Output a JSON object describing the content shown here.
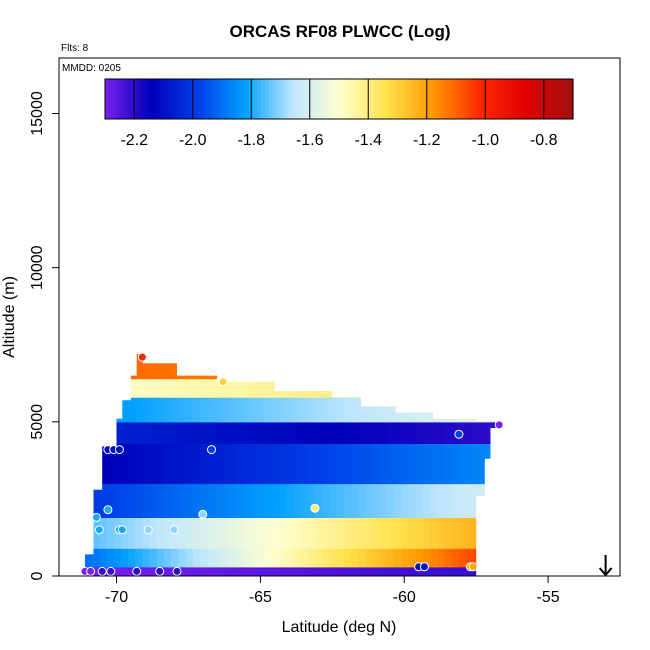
{
  "chart_data": {
    "type": "heatmap",
    "title": "ORCAS RF08 PLWCC (Log)",
    "annotations": {
      "flights": "Flts: 8",
      "date": "MMDD: 0205"
    },
    "xlabel": "Latitude (deg N)",
    "ylabel": "Altitude (m)",
    "xlim": [
      -72,
      -52.5
    ],
    "ylim": [
      0,
      16800
    ],
    "x_ticks": [
      -70,
      -65,
      -60,
      -55
    ],
    "x_tick_labels": [
      "-70",
      "-65",
      "-60",
      "-55"
    ],
    "y_ticks": [
      0,
      5000,
      10000,
      15000
    ],
    "y_tick_labels": [
      "0",
      "5000",
      "10000",
      "15000"
    ],
    "grid": false,
    "colorbar": {
      "range": [
        -2.3,
        -0.7
      ],
      "ticks": [
        -2.2,
        -2.0,
        -1.8,
        -1.6,
        -1.4,
        -1.2,
        -1.0,
        -0.8
      ],
      "tick_labels": [
        "-2.2",
        "-2.0",
        "-1.8",
        "-1.6",
        "-1.4",
        "-1.2",
        "-1.0",
        "-0.8"
      ],
      "colors": [
        "#7a1ff0",
        "#0000b8",
        "#0040e8",
        "#00a0ff",
        "#bfe6ff",
        "#ffffd0",
        "#ffe24d",
        "#ff9a00",
        "#ff2a00",
        "#e00000",
        "#a01010"
      ],
      "placement": "top-inside"
    },
    "domain_outline": [
      [
        -71.1,
        0
      ],
      [
        -71.1,
        700
      ],
      [
        -70.8,
        700
      ],
      [
        -70.8,
        2800
      ],
      [
        -70.5,
        2800
      ],
      [
        -70.5,
        4200
      ],
      [
        -70.0,
        4200
      ],
      [
        -70.0,
        5100
      ],
      [
        -69.8,
        5100
      ],
      [
        -69.8,
        5700
      ],
      [
        -69.5,
        5700
      ],
      [
        -69.5,
        6500
      ],
      [
        -69.3,
        6500
      ],
      [
        -69.3,
        7200
      ],
      [
        -69.1,
        7200
      ],
      [
        -69.1,
        6900
      ],
      [
        -67.9,
        6900
      ],
      [
        -67.9,
        6500
      ],
      [
        -66.5,
        6500
      ],
      [
        -66.5,
        6300
      ],
      [
        -64.5,
        6300
      ],
      [
        -64.5,
        6000
      ],
      [
        -62.5,
        6000
      ],
      [
        -62.5,
        5800
      ],
      [
        -61.5,
        5800
      ],
      [
        -61.5,
        5500
      ],
      [
        -60.3,
        5500
      ],
      [
        -60.3,
        5300
      ],
      [
        -59.0,
        5300
      ],
      [
        -59.0,
        5100
      ],
      [
        -57.5,
        5100
      ],
      [
        -57.5,
        5000
      ],
      [
        -56.7,
        5000
      ],
      [
        -56.7,
        4800
      ],
      [
        -57.0,
        4800
      ],
      [
        -57.0,
        3800
      ],
      [
        -57.2,
        3800
      ],
      [
        -57.2,
        2600
      ],
      [
        -57.5,
        2600
      ],
      [
        -57.5,
        0
      ]
    ],
    "field_levels": [
      {
        "alt_from": 0,
        "alt_to": 300,
        "value_at_south": -2.3,
        "value_at_north": -2.2
      },
      {
        "alt_from": 300,
        "alt_to": 900,
        "value_at_south": -1.9,
        "value_at_north": -1.0
      },
      {
        "alt_from": 900,
        "alt_to": 1900,
        "value_at_south": -1.75,
        "value_at_north": -1.2
      },
      {
        "alt_from": 1900,
        "alt_to": 3000,
        "value_at_south": -2.0,
        "value_at_north": -1.6
      },
      {
        "alt_from": 3000,
        "alt_to": 4300,
        "value_at_south": -2.15,
        "value_at_north": -1.85
      },
      {
        "alt_from": 4300,
        "alt_to": 5000,
        "value_at_south": -2.05,
        "value_at_north": -2.2
      },
      {
        "alt_from": 5000,
        "alt_to": 5800,
        "value_at_south": -1.85,
        "value_at_north": -1.55
      },
      {
        "alt_from": 5800,
        "alt_to": 6400,
        "value_at_south": -1.5,
        "value_at_north": -1.35
      },
      {
        "alt_from": 6400,
        "alt_to": 7200,
        "value_at_south": -1.1,
        "value_at_north": -1.2
      }
    ],
    "observations": [
      {
        "x": -71.1,
        "y": 150,
        "v": -2.3
      },
      {
        "x": -70.9,
        "y": 150,
        "v": -2.3
      },
      {
        "x": -70.5,
        "y": 150,
        "v": -2.2
      },
      {
        "x": -70.2,
        "y": 150,
        "v": -2.2
      },
      {
        "x": -69.3,
        "y": 150,
        "v": -2.2
      },
      {
        "x": -68.5,
        "y": 150,
        "v": -2.2
      },
      {
        "x": -67.9,
        "y": 150,
        "v": -2.2
      },
      {
        "x": -70.7,
        "y": 1900,
        "v": -1.8
      },
      {
        "x": -70.6,
        "y": 1500,
        "v": -1.8
      },
      {
        "x": -70.3,
        "y": 2150,
        "v": -1.8
      },
      {
        "x": -69.9,
        "y": 1500,
        "v": -1.8
      },
      {
        "x": -69.8,
        "y": 1500,
        "v": -1.8
      },
      {
        "x": -68.9,
        "y": 1500,
        "v": -1.7
      },
      {
        "x": -68.0,
        "y": 1500,
        "v": -1.7
      },
      {
        "x": -67.0,
        "y": 2000,
        "v": -1.7
      },
      {
        "x": -63.1,
        "y": 2200,
        "v": -1.4
      },
      {
        "x": -70.3,
        "y": 4100,
        "v": -2.1
      },
      {
        "x": -70.1,
        "y": 4100,
        "v": -2.1
      },
      {
        "x": -69.9,
        "y": 4100,
        "v": -2.1
      },
      {
        "x": -66.7,
        "y": 4100,
        "v": -2.0
      },
      {
        "x": -69.1,
        "y": 7100,
        "v": -1.0
      },
      {
        "x": -66.3,
        "y": 6300,
        "v": -1.3
      },
      {
        "x": -59.5,
        "y": 300,
        "v": -2.1
      },
      {
        "x": -59.3,
        "y": 300,
        "v": -2.1
      },
      {
        "x": -57.7,
        "y": 300,
        "v": -1.2
      },
      {
        "x": -57.6,
        "y": 300,
        "v": -1.2
      },
      {
        "x": -58.1,
        "y": 4600,
        "v": -2.0
      },
      {
        "x": -56.7,
        "y": 4900,
        "v": -2.3
      }
    ],
    "arrow_marker": {
      "x": -53.0,
      "direction": "down"
    }
  }
}
